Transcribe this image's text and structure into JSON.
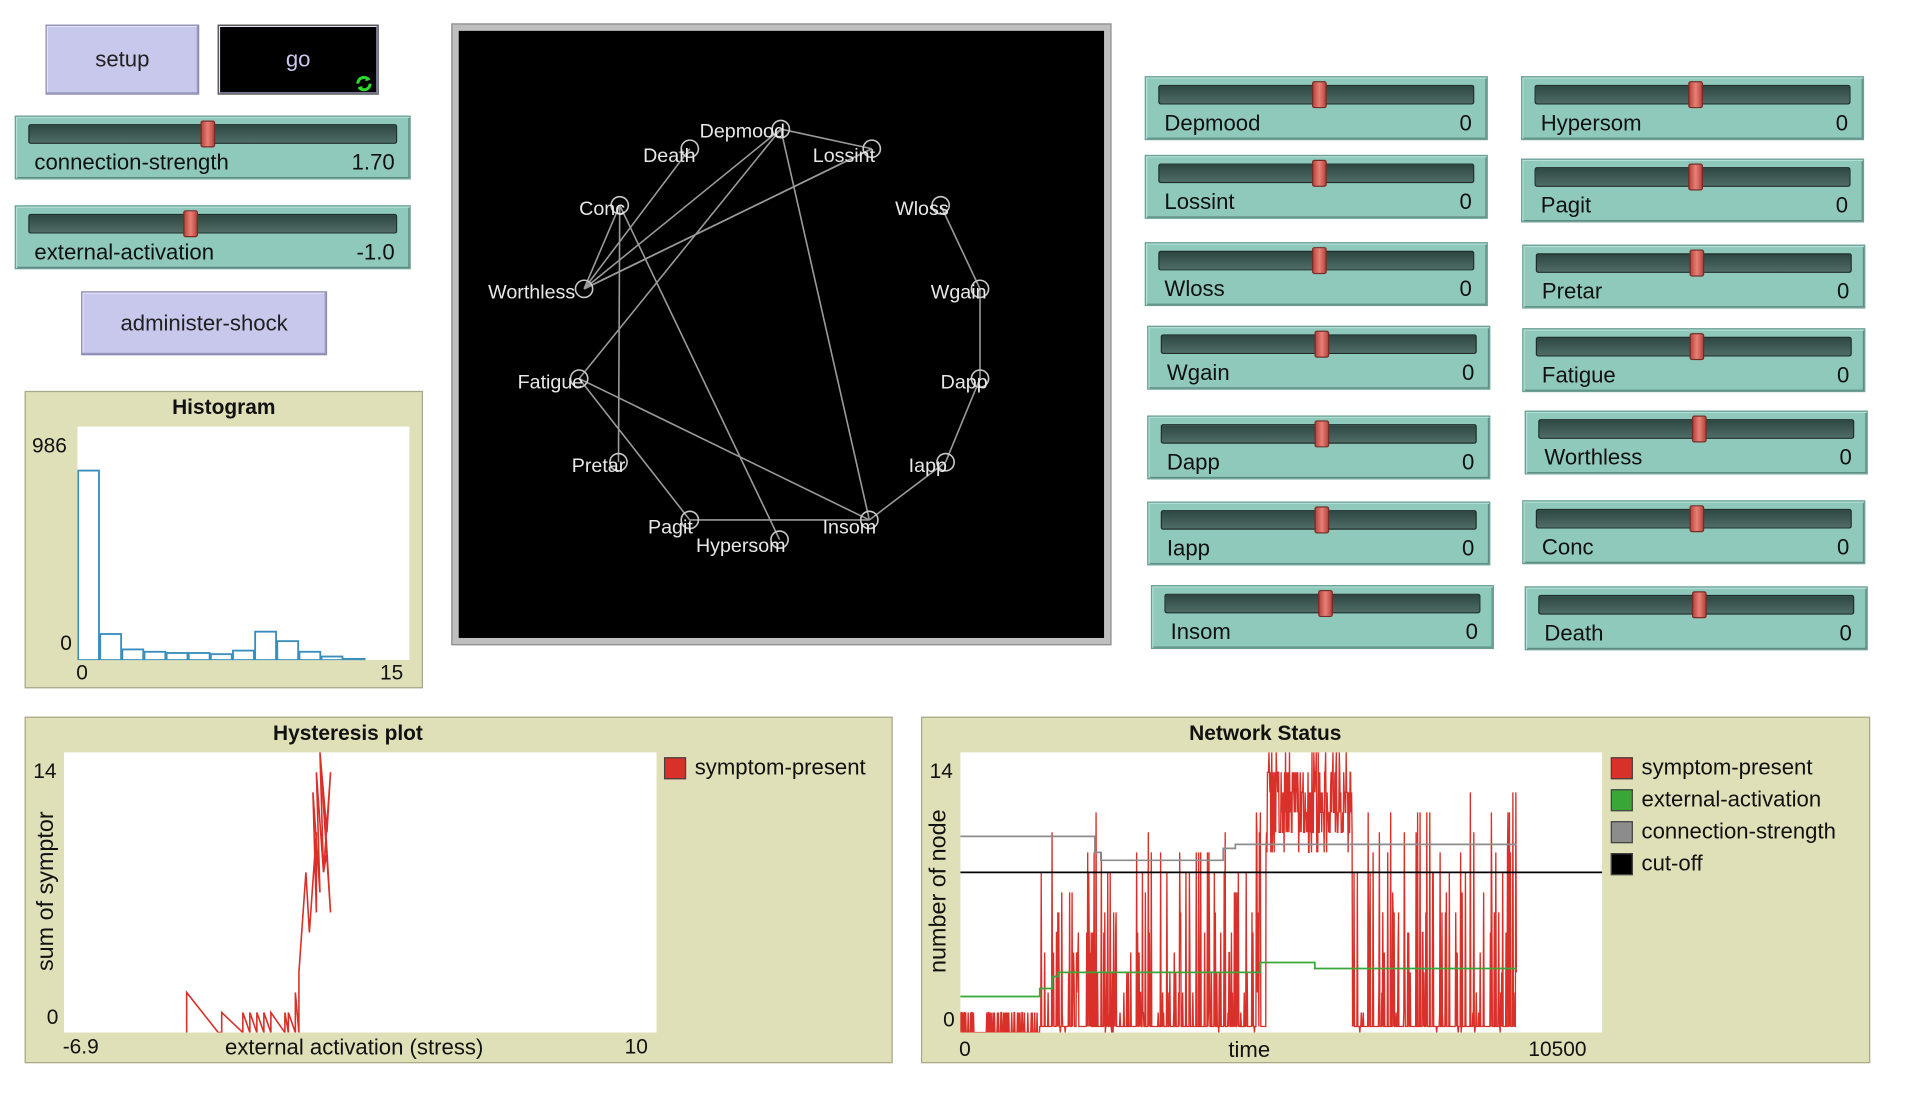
{
  "buttons": {
    "setup": "setup",
    "go": "go",
    "administer_shock": "administer-shock"
  },
  "global_sliders": [
    {
      "label": "connection-strength",
      "value": "1.70",
      "fraction": 0.48
    },
    {
      "label": "external-activation",
      "value": "-1.0",
      "fraction": 0.43
    }
  ],
  "node_sliders": [
    {
      "label": "Depmood",
      "value": "0",
      "fraction": 0.5
    },
    {
      "label": "Lossint",
      "value": "0",
      "fraction": 0.5
    },
    {
      "label": "Wloss",
      "value": "0",
      "fraction": 0.5
    },
    {
      "label": "Wgain",
      "value": "0",
      "fraction": 0.5
    },
    {
      "label": "Dapp",
      "value": "0",
      "fraction": 0.5
    },
    {
      "label": "Iapp",
      "value": "0",
      "fraction": 0.5
    },
    {
      "label": "Insom",
      "value": "0",
      "fraction": 0.5
    },
    {
      "label": "Hypersom",
      "value": "0",
      "fraction": 0.5
    },
    {
      "label": "Pagit",
      "value": "0",
      "fraction": 0.5
    },
    {
      "label": "Pretar",
      "value": "0",
      "fraction": 0.5
    },
    {
      "label": "Fatigue",
      "value": "0",
      "fraction": 0.5
    },
    {
      "label": "Worthless",
      "value": "0",
      "fraction": 0.5
    },
    {
      "label": "Conc",
      "value": "0",
      "fraction": 0.5
    },
    {
      "label": "Death",
      "value": "0",
      "fraction": 0.5
    }
  ],
  "network": {
    "nodes": [
      "Depmood",
      "Lossint",
      "Wloss",
      "Wgain",
      "Dapp",
      "Iapp",
      "Insom",
      "Hypersom",
      "Pagit",
      "Pretar",
      "Fatigue",
      "Worthless",
      "Conc",
      "Death"
    ],
    "links": [
      [
        "Depmood",
        "Lossint"
      ],
      [
        "Depmood",
        "Worthless"
      ],
      [
        "Depmood",
        "Insom"
      ],
      [
        "Depmood",
        "Fatigue"
      ],
      [
        "Lossint",
        "Worthless"
      ],
      [
        "Death",
        "Worthless"
      ],
      [
        "Conc",
        "Worthless"
      ],
      [
        "Conc",
        "Pretar"
      ],
      [
        "Conc",
        "Hypersom"
      ],
      [
        "Fatigue",
        "Insom"
      ],
      [
        "Fatigue",
        "Pagit"
      ],
      [
        "Pagit",
        "Insom"
      ],
      [
        "Insom",
        "Iapp"
      ],
      [
        "Iapp",
        "Dapp"
      ],
      [
        "Dapp",
        "Wgain"
      ],
      [
        "Wgain",
        "Wloss"
      ],
      [
        "Worthless",
        "Lossint"
      ]
    ]
  },
  "chart_data": [
    {
      "type": "bar",
      "title": "Histogram",
      "xlim": [
        0,
        15
      ],
      "ylim": [
        0,
        986
      ],
      "x_tick_labels": [
        "0",
        "15"
      ],
      "y_tick_labels": [
        "0",
        "986"
      ],
      "bin_width": 1,
      "values": [
        800,
        110,
        45,
        35,
        30,
        30,
        25,
        40,
        120,
        80,
        35,
        15,
        5,
        0,
        0
      ],
      "color": "#3a8ebd"
    },
    {
      "type": "line",
      "title": "Hysteresis plot",
      "xlabel": "external activation (stress)",
      "ylabel": "sum of symptor",
      "xlim": [
        -6.9,
        10
      ],
      "ylim": [
        0,
        14
      ],
      "x_tick_labels": [
        "-6.9",
        "10"
      ],
      "y_tick_labels": [
        "0",
        "14"
      ],
      "series": [
        {
          "name": "symptom-present",
          "color": "#d9302a",
          "x": [
            -3.4,
            -3.4,
            -2.5,
            -2.4,
            -2.4,
            -1.8,
            -1.8,
            -1.6,
            -1.6,
            -1.4,
            -1.4,
            -1.2,
            -1.2,
            -1.0,
            -1.0,
            -0.6,
            -0.6,
            -0.5,
            -0.5,
            -0.3,
            -0.3,
            -0.2,
            -0.2,
            0.0,
            0.1,
            0.3,
            0.3,
            0.2,
            0.4,
            0.3,
            0.5,
            0.4,
            0.6,
            0.5,
            0.7,
            0.4,
            0.6,
            0.7,
            0.5,
            0.6
          ],
          "y": [
            0,
            2,
            0,
            0,
            1,
            0,
            1,
            0,
            1,
            0,
            1,
            0,
            1,
            0,
            1,
            0,
            1,
            0,
            1,
            0,
            2,
            0,
            3,
            8,
            5,
            10,
            6,
            12,
            7,
            13,
            8,
            14,
            9,
            12,
            6,
            14,
            10,
            13,
            8,
            9
          ]
        }
      ]
    },
    {
      "type": "line",
      "title": "Network Status",
      "xlabel": "time",
      "ylabel": "number of node",
      "xlim": [
        0,
        10500
      ],
      "ylim": [
        0,
        14
      ],
      "x_tick_labels": [
        "0",
        "10500"
      ],
      "y_tick_labels": [
        "0",
        "14"
      ],
      "series": [
        {
          "name": "symptom-present",
          "color": "#d9302a",
          "x": [],
          "y": []
        },
        {
          "name": "external-activation",
          "color": "#3aa637",
          "x": [
            0,
            1200,
            1300,
            1500,
            1600,
            3100,
            4900,
            5200,
            5800,
            9100
          ],
          "y": [
            1.8,
            1.8,
            2.2,
            2.8,
            3.0,
            3.0,
            3.5,
            3.5,
            3.2,
            3.2
          ]
        },
        {
          "name": "connection-strength",
          "color": "#8c8c8c",
          "x": [
            0,
            2100,
            2200,
            2300,
            4200,
            4300,
            4500,
            9100
          ],
          "y": [
            9.8,
            9.8,
            9.0,
            8.6,
            8.6,
            9.2,
            9.4,
            9.4
          ]
        },
        {
          "name": "cut-off",
          "color": "#000000",
          "x": [
            0,
            10500
          ],
          "y": [
            8,
            8
          ]
        }
      ],
      "symptom_profile": {
        "seed": 7,
        "segments": [
          {
            "from": 0,
            "to": 1300,
            "base": 0,
            "spike_max": 1,
            "spike_rate": 0.6
          },
          {
            "from": 1300,
            "to": 5000,
            "base": 0.3,
            "spike_max": 11,
            "spike_rate": 0.25
          },
          {
            "from": 5000,
            "to": 6400,
            "base": 9,
            "spike_max": 14,
            "spike_rate": 0.8
          },
          {
            "from": 6400,
            "to": 9100,
            "base": 0.3,
            "spike_max": 12,
            "spike_rate": 0.22
          }
        ]
      }
    }
  ]
}
